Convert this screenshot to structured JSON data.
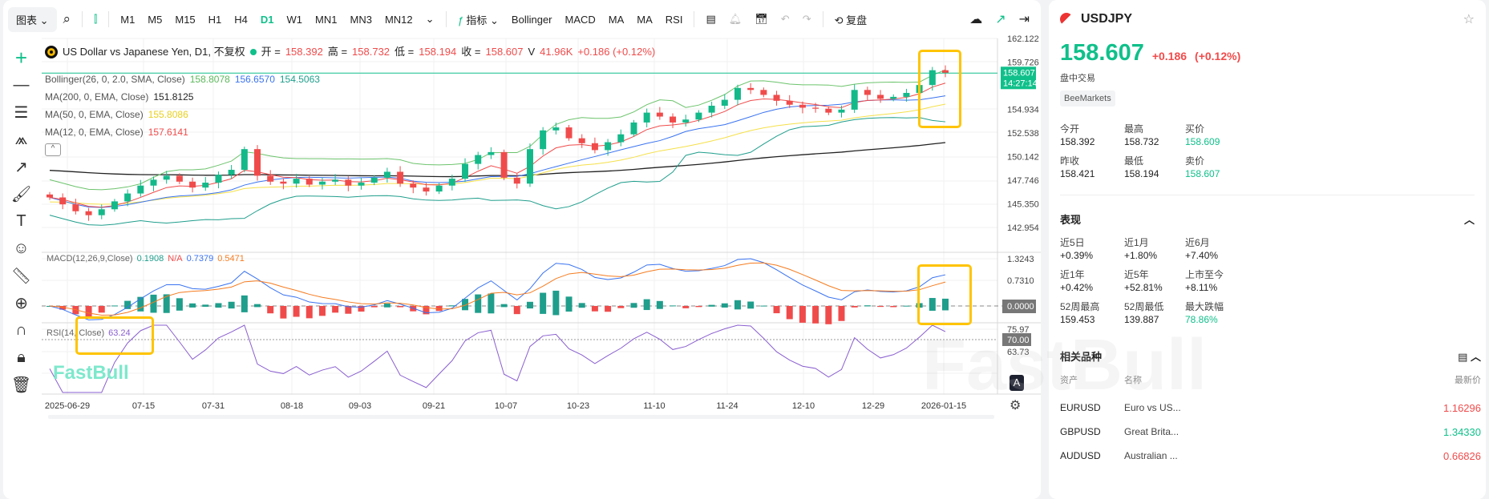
{
  "toolbar": {
    "chart_type": "图表",
    "timeframes": [
      "M1",
      "M5",
      "M15",
      "H1",
      "H4",
      "D1",
      "W1",
      "MN1",
      "MN3",
      "MN12"
    ],
    "active_timeframe": "D1",
    "indicators_label": "指标",
    "quick_indicators": [
      "Bollinger",
      "MACD",
      "MA",
      "MA",
      "RSI"
    ],
    "replay_label": "复盘"
  },
  "legend": {
    "title": "US Dollar vs Japanese Yen, D1, 不复权",
    "open_label": "开 =",
    "open": "158.392",
    "high_label": "高 =",
    "high": "158.732",
    "low_label": "低 =",
    "low": "158.194",
    "close_label": "收 =",
    "close": "158.607",
    "vol_label": "V",
    "vol": "41.96K",
    "change": "+0.186 (+0.12%)",
    "bollinger": {
      "label": "Bollinger(26, 0, 2.0, SMA, Close)",
      "upper": "158.8078",
      "mid": "156.6570",
      "lower": "154.5063"
    },
    "ma200": {
      "label": "MA(200, 0, EMA, Close)",
      "value": "151.8125"
    },
    "ma50": {
      "label": "MA(50, 0, EMA, Close)",
      "value": "155.8086"
    },
    "ma12": {
      "label": "MA(12, 0, EMA, Close)",
      "value": "157.6141"
    },
    "macd": {
      "label": "MACD(12,26,9,Close)",
      "hist": "0.1908",
      "na": "N/A",
      "macd": "0.7379",
      "signal": "0.5471"
    },
    "rsi": {
      "label": "RSI(14, Close)",
      "value": "63.24"
    }
  },
  "price_axis": [
    "162.122",
    "159.726",
    "154.934",
    "152.538",
    "150.142",
    "147.746",
    "145.350",
    "142.954"
  ],
  "current_price": {
    "price": "158.607",
    "countdown": "14:27:14"
  },
  "macd_axis": [
    "1.3243",
    "0.7310",
    "0.0000"
  ],
  "rsi_axis": [
    "75.97",
    "70.00",
    "63.73"
  ],
  "time_axis": [
    "2025-06-29",
    "07-15",
    "07-31",
    "08-18",
    "09-03",
    "09-21",
    "10-07",
    "10-23",
    "11-10",
    "11-24",
    "12-10",
    "12-29",
    "2026-01-15"
  ],
  "watermark": "FastBull",
  "auto_label": "A",
  "colors": {
    "up": "#14b98a",
    "down": "#f04b4b",
    "accent": "#10c08a",
    "boll_upper": "#6cc36c",
    "boll_mid": "#3a73f0",
    "boll_lower": "#1f9e8c",
    "ma200": "#222222",
    "ma50": "#f5e04a",
    "ma12": "#f04b4b",
    "macd": "#3a73f0",
    "signal": "#f57c20",
    "rsi": "#8a5fd0",
    "highlight": "#ffc400"
  },
  "chart_data": {
    "type": "candlestick",
    "approx_closes": [
      146.0,
      145.3,
      144.6,
      144.2,
      144.8,
      145.6,
      146.4,
      147.2,
      147.8,
      148.2,
      147.6,
      147.0,
      147.5,
      148.3,
      148.8,
      150.9,
      148.2,
      147.6,
      147.4,
      147.9,
      147.3,
      147.6,
      147.8,
      147.2,
      147.5,
      148.0,
      148.6,
      147.4,
      147.0,
      146.6,
      147.2,
      147.9,
      149.4,
      150.3,
      150.6,
      148.0,
      147.4,
      150.9,
      152.8,
      153.1,
      152.0,
      151.5,
      150.8,
      151.6,
      152.4,
      153.6,
      154.6,
      154.2,
      153.6,
      153.9,
      154.6,
      155.3,
      155.9,
      157.1,
      156.9,
      156.4,
      155.8,
      155.4,
      155.1,
      155.0,
      154.6,
      154.9,
      156.9,
      156.4,
      156.0,
      156.2,
      156.6,
      157.4,
      158.9,
      158.6
    ],
    "ylim": [
      142.954,
      162.122
    ]
  },
  "sidebar": {
    "symbol": "USDJPY",
    "price": "158.607",
    "change": "+0.186",
    "change_pct": "(+0.12%)",
    "status": "盘中交易",
    "broker": "BeeMarkets",
    "quote": [
      {
        "label": "今开",
        "value": "158.392"
      },
      {
        "label": "最高",
        "value": "158.732"
      },
      {
        "label": "买价",
        "value": "158.609",
        "green": true
      },
      {
        "label": "昨收",
        "value": "158.421"
      },
      {
        "label": "最低",
        "value": "158.194"
      },
      {
        "label": "卖价",
        "value": "158.607",
        "green": true
      }
    ],
    "perf_title": "表现",
    "perf": [
      {
        "label": "近5日",
        "value": "+0.39%"
      },
      {
        "label": "近1月",
        "value": "+1.80%"
      },
      {
        "label": "近6月",
        "value": "+7.40%"
      },
      {
        "label": "近1年",
        "value": "+0.42%"
      },
      {
        "label": "近5年",
        "value": "+52.81%"
      },
      {
        "label": "上市至今",
        "value": "+8.11%"
      },
      {
        "label": "52周最高",
        "value": "159.453"
      },
      {
        "label": "52周最低",
        "value": "139.887"
      },
      {
        "label": "最大跌幅",
        "value": "78.86%",
        "green": true
      }
    ],
    "related_title": "相关品种",
    "related_headers": [
      "资产",
      "名称",
      "最新价"
    ],
    "related": [
      {
        "asset": "EURUSD",
        "name": "Euro vs US...",
        "price": "1.16296",
        "color": "red"
      },
      {
        "asset": "GBPUSD",
        "name": "Great Brita...",
        "price": "1.34330",
        "color": "green"
      },
      {
        "asset": "AUDUSD",
        "name": "Australian ...",
        "price": "0.66826",
        "color": "red"
      }
    ]
  }
}
